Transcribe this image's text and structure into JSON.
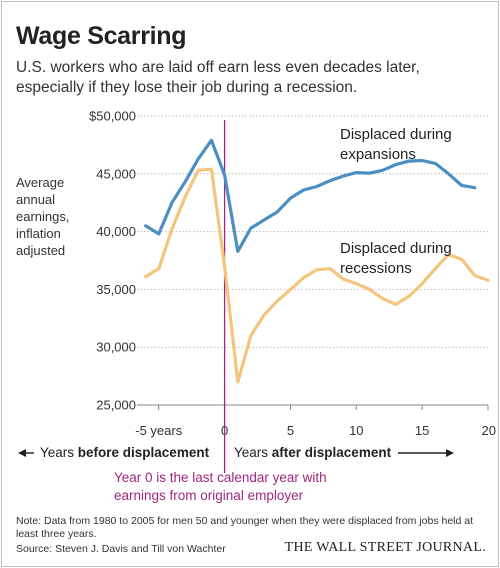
{
  "title": "Wage Scarring",
  "subtitle": "U.S. workers who are laid off earn less even decades later, especially if they lose their job during a recession.",
  "y_axis_label": "Average annual earnings, inflation adjusted",
  "note": "Note: Data from 1980 to 2005 for men 50 and younger when they were displaced from jobs held at least three years.",
  "source": "Source: Steven J. Davis and Till von Wachter",
  "publisher": "THE WALL STREET JOURNAL.",
  "colors": {
    "expansions": "#4a8ec2",
    "recessions": "#f4c57c",
    "zero_line": "#a0287e",
    "grid": "#bbbbbb",
    "text": "#222222"
  },
  "chart_data": {
    "type": "line",
    "ylim": [
      25000,
      50000
    ],
    "xlim": [
      -6.5,
      20
    ],
    "y_ticks": [
      {
        "value": 50000,
        "label": "$50,000"
      },
      {
        "value": 45000,
        "label": "45,000"
      },
      {
        "value": 40000,
        "label": "40,000"
      },
      {
        "value": 35000,
        "label": "35,000"
      },
      {
        "value": 30000,
        "label": "30,000"
      },
      {
        "value": 25000,
        "label": "25,000"
      }
    ],
    "x_ticks": [
      {
        "value": -5,
        "label": "-5 years"
      },
      {
        "value": 0,
        "label": "0"
      },
      {
        "value": 5,
        "label": "5"
      },
      {
        "value": 10,
        "label": "10"
      },
      {
        "value": 15,
        "label": "15"
      },
      {
        "value": 20,
        "label": "20"
      }
    ],
    "series": [
      {
        "name": "Displaced during expansions",
        "label_lines": [
          "Displaced during",
          "expansions"
        ],
        "points": [
          [
            -6,
            40500
          ],
          [
            -5,
            39800
          ],
          [
            -4,
            42500
          ],
          [
            -3,
            44300
          ],
          [
            -2,
            46300
          ],
          [
            -1,
            47900
          ],
          [
            0,
            44900
          ],
          [
            1,
            38300
          ],
          [
            2,
            40300
          ],
          [
            3,
            41000
          ],
          [
            4,
            41700
          ],
          [
            5,
            42900
          ],
          [
            6,
            43600
          ],
          [
            7,
            43900
          ],
          [
            8,
            44400
          ],
          [
            9,
            44800
          ],
          [
            10,
            45100
          ],
          [
            11,
            45050
          ],
          [
            12,
            45300
          ],
          [
            13,
            45800
          ],
          [
            14,
            46100
          ],
          [
            15,
            46150
          ],
          [
            16,
            45900
          ],
          [
            17,
            45000
          ],
          [
            18,
            44000
          ],
          [
            19,
            43800
          ]
        ]
      },
      {
        "name": "Displaced during recessions",
        "label_lines": [
          "Displaced during",
          "recessions"
        ],
        "points": [
          [
            -6,
            36100
          ],
          [
            -5,
            36800
          ],
          [
            -4,
            40200
          ],
          [
            -3,
            43000
          ],
          [
            -2,
            45300
          ],
          [
            -1,
            45400
          ],
          [
            0,
            37000
          ],
          [
            1,
            27000
          ],
          [
            2,
            31000
          ],
          [
            3,
            32800
          ],
          [
            4,
            34000
          ],
          [
            5,
            35000
          ],
          [
            6,
            36000
          ],
          [
            7,
            36700
          ],
          [
            8,
            36800
          ],
          [
            9,
            35900
          ],
          [
            10,
            35500
          ],
          [
            11,
            35000
          ],
          [
            12,
            34200
          ],
          [
            13,
            33700
          ],
          [
            14,
            34400
          ],
          [
            15,
            35500
          ],
          [
            16,
            36800
          ],
          [
            17,
            38000
          ],
          [
            18,
            37600
          ],
          [
            19,
            36200
          ],
          [
            20,
            35800
          ]
        ]
      }
    ],
    "axis_annotations": {
      "before": "Years before displacement",
      "before_prefix": "Years ",
      "before_bold": "before displacement",
      "after_prefix": "Years ",
      "after_bold": "after displacement",
      "year0_line1": "Year 0 is the last calendar year with",
      "year0_line2": "earnings from original employer"
    }
  }
}
